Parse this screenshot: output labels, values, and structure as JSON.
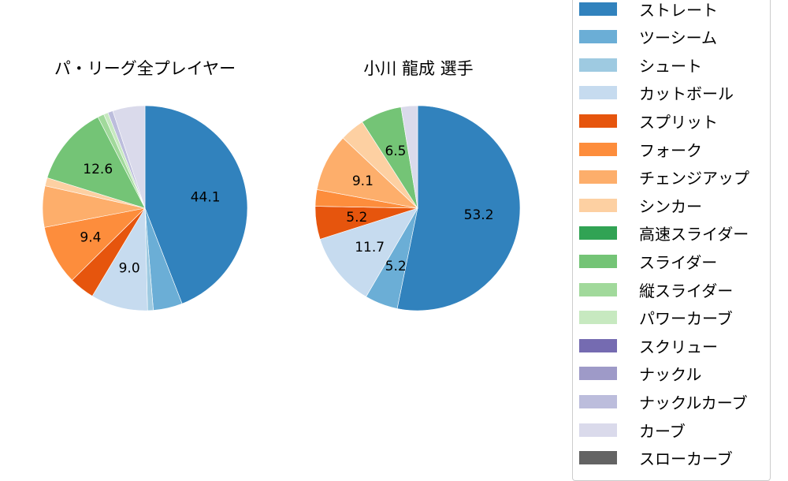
{
  "chart_data": [
    {
      "type": "pie",
      "title": "パ・リーグ全プレイヤー",
      "start": "top",
      "direction": "clockwise",
      "center": [
        184,
        264
      ],
      "radius": 130,
      "labels": [
        "ストレート",
        "ツーシーム",
        "シュート",
        "カットボール",
        "スプリット",
        "フォーク",
        "チェンジアップ",
        "シンカー",
        "スライダー",
        "縦スライダー",
        "パワーカーブ",
        "ナックルカーブ",
        "カーブ"
      ],
      "values": [
        44.1,
        4.6,
        0.9,
        9.0,
        4.0,
        9.4,
        6.5,
        1.3,
        12.6,
        1.0,
        0.7,
        0.8,
        5.1
      ],
      "shown_value_labels": {
        "ストレート": "44.1",
        "カットボール": "9.0",
        "フォーク": "9.4",
        "スライダー": "12.6"
      }
    },
    {
      "type": "pie",
      "title": "小川 龍成  選手",
      "start": "top",
      "direction": "clockwise",
      "center": [
        530,
        264
      ],
      "radius": 130,
      "labels": [
        "ストレート",
        "ツーシーム",
        "カットボール",
        "スプリット",
        "フォーク",
        "チェンジアップ",
        "シンカー",
        "スライダー",
        "カーブ"
      ],
      "values": [
        53.2,
        5.2,
        11.7,
        5.2,
        2.6,
        9.1,
        3.9,
        6.5,
        2.6
      ],
      "shown_value_labels": {
        "ストレート": "53.2",
        "ツーシーム": "5.2",
        "カットボール": "11.7",
        "スプリット": "5.2",
        "チェンジアップ": "9.1",
        "スライダー": "6.5"
      }
    }
  ],
  "legend": {
    "position": "right",
    "items": [
      {
        "label": "ストレート",
        "color": "#3182bd"
      },
      {
        "label": "ツーシーム",
        "color": "#6baed6"
      },
      {
        "label": "シュート",
        "color": "#9ecae1"
      },
      {
        "label": "カットボール",
        "color": "#c6dbef"
      },
      {
        "label": "スプリット",
        "color": "#e6550d"
      },
      {
        "label": "フォーク",
        "color": "#fd8d3c"
      },
      {
        "label": "チェンジアップ",
        "color": "#fdae6b"
      },
      {
        "label": "シンカー",
        "color": "#fdd0a2"
      },
      {
        "label": "高速スライダー",
        "color": "#31a354"
      },
      {
        "label": "スライダー",
        "color": "#74c476"
      },
      {
        "label": "縦スライダー",
        "color": "#a1d99b"
      },
      {
        "label": "パワーカーブ",
        "color": "#c7e9c0"
      },
      {
        "label": "スクリュー",
        "color": "#756bb1"
      },
      {
        "label": "ナックル",
        "color": "#9e9ac8"
      },
      {
        "label": "ナックルカーブ",
        "color": "#bcbddc"
      },
      {
        "label": "カーブ",
        "color": "#dadaeb"
      },
      {
        "label": "スローカーブ",
        "color": "#636363"
      }
    ]
  },
  "titles": {
    "left": "パ・リーグ全プレイヤー",
    "right": "小川 龍成  選手"
  }
}
